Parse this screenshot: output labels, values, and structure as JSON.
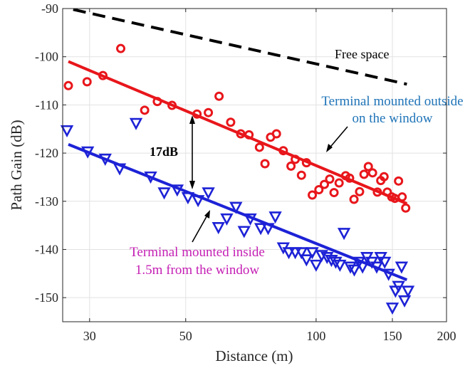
{
  "colors": {
    "outside": "#e8161b",
    "inside": "#1d22d6",
    "freespace": "#000000",
    "outside_label": "#1f74b8",
    "inside_label": "#c41fb4",
    "grid": "#e2e2e2"
  },
  "chart_data": {
    "type": "scatter",
    "xscale": "log",
    "xlim": [
      26,
      200
    ],
    "ylim": [
      -155,
      -90
    ],
    "xticks": [
      30,
      50,
      100,
      150,
      200
    ],
    "xtick_labels": [
      "30",
      "50",
      "100",
      "150",
      "200"
    ],
    "yticks": [
      -150,
      -140,
      -130,
      -120,
      -110,
      -100,
      -90
    ],
    "ytick_labels": [
      "-150",
      "-140",
      "-130",
      "-120",
      "-110",
      "-100",
      "-90"
    ],
    "xlabel": "Distance (m)",
    "ylabel": "Path Gain (dB)",
    "grid": true,
    "series": [
      {
        "key": "outside",
        "marker": "circle",
        "points": [
          [
            26.8,
            -106
          ],
          [
            29.6,
            -105.2
          ],
          [
            32.2,
            -103.9
          ],
          [
            35.4,
            -98.3
          ],
          [
            40.2,
            -111.1
          ],
          [
            43,
            -109.3
          ],
          [
            46.5,
            -110.1
          ],
          [
            53.1,
            -111.9
          ],
          [
            56.4,
            -111.6
          ],
          [
            59.7,
            -108.2
          ],
          [
            63.5,
            -113.6
          ],
          [
            67,
            -116
          ],
          [
            70,
            -116.2
          ],
          [
            74,
            -118.8
          ],
          [
            76.2,
            -122.2
          ],
          [
            78.5,
            -116.7
          ],
          [
            81,
            -116
          ],
          [
            84,
            -119.5
          ],
          [
            87.5,
            -122.7
          ],
          [
            89.5,
            -121.3
          ],
          [
            92.5,
            -124.6
          ],
          [
            95,
            -122
          ],
          [
            98,
            -128.7
          ],
          [
            101.5,
            -127.6
          ],
          [
            104.5,
            -126.5
          ],
          [
            107.5,
            -125.4
          ],
          [
            110,
            -128.2
          ],
          [
            113,
            -126.2
          ],
          [
            117,
            -124.7
          ],
          [
            119.5,
            -125.2
          ],
          [
            122.3,
            -129.6
          ],
          [
            126,
            -128
          ],
          [
            129,
            -124.4
          ],
          [
            132,
            -122.8
          ],
          [
            135,
            -124.1
          ],
          [
            138.5,
            -128.1
          ],
          [
            141,
            -125.7
          ],
          [
            143.5,
            -124.9
          ],
          [
            146,
            -128.1
          ],
          [
            149.5,
            -129.1
          ],
          [
            152,
            -129.4
          ],
          [
            155,
            -125.8
          ],
          [
            158,
            -129.1
          ],
          [
            161,
            -131.4
          ]
        ]
      },
      {
        "key": "inside",
        "marker": "triangle-down",
        "points": [
          [
            26.6,
            -115.3
          ],
          [
            29.7,
            -119.7
          ],
          [
            32.6,
            -121.2
          ],
          [
            35.2,
            -123.2
          ],
          [
            38.4,
            -113.8
          ],
          [
            41.5,
            -124.9
          ],
          [
            44.6,
            -128.2
          ],
          [
            47.8,
            -127.6
          ],
          [
            50.6,
            -129.2
          ],
          [
            53.4,
            -129.8
          ],
          [
            56.4,
            -128.2
          ],
          [
            59.5,
            -135.4
          ],
          [
            62.2,
            -133.6
          ],
          [
            65.3,
            -131.2
          ],
          [
            68.2,
            -136.2
          ],
          [
            70.5,
            -133.6
          ],
          [
            74.5,
            -135.6
          ],
          [
            77.5,
            -135.6
          ],
          [
            80.5,
            -133.2
          ],
          [
            84,
            -139.6
          ],
          [
            86.5,
            -140.6
          ],
          [
            89.5,
            -140.6
          ],
          [
            92.5,
            -140.6
          ],
          [
            95,
            -142.1
          ],
          [
            98,
            -140.6
          ],
          [
            100,
            -143.2
          ],
          [
            103,
            -141.2
          ],
          [
            106,
            -141.6
          ],
          [
            108.5,
            -142.2
          ],
          [
            111,
            -142.6
          ],
          [
            113.5,
            -143.2
          ],
          [
            116,
            -136.6
          ],
          [
            120,
            -143.6
          ],
          [
            122.5,
            -144.2
          ],
          [
            125.5,
            -142.6
          ],
          [
            128,
            -143.6
          ],
          [
            131,
            -141.6
          ],
          [
            134.5,
            -142.6
          ],
          [
            138,
            -143.6
          ],
          [
            141,
            -141.6
          ],
          [
            144,
            -142.6
          ],
          [
            147,
            -145.1
          ],
          [
            150,
            -152.1
          ],
          [
            152.5,
            -148.6
          ],
          [
            155,
            -147.6
          ],
          [
            157.5,
            -143.6
          ],
          [
            160,
            -150.6
          ],
          [
            163,
            -148.6
          ]
        ]
      }
    ],
    "fit_lines": [
      {
        "key": "outside",
        "from": [
          26.8,
          -101
        ],
        "to": [
          162,
          -130.5
        ]
      },
      {
        "key": "inside",
        "from": [
          26.8,
          -118.2
        ],
        "to": [
          162,
          -146.3
        ]
      }
    ],
    "freespace_line": {
      "from": [
        27.5,
        -90.2
      ],
      "to": [
        162,
        -105.7
      ]
    },
    "annotations": {
      "free_space": "Free space",
      "outside_line1": "Terminal mounted outside",
      "outside_line2": "on the window",
      "inside_line1": "Terminal mounted inside",
      "inside_line2": "1.5m from the window",
      "gap": "17dB"
    }
  }
}
